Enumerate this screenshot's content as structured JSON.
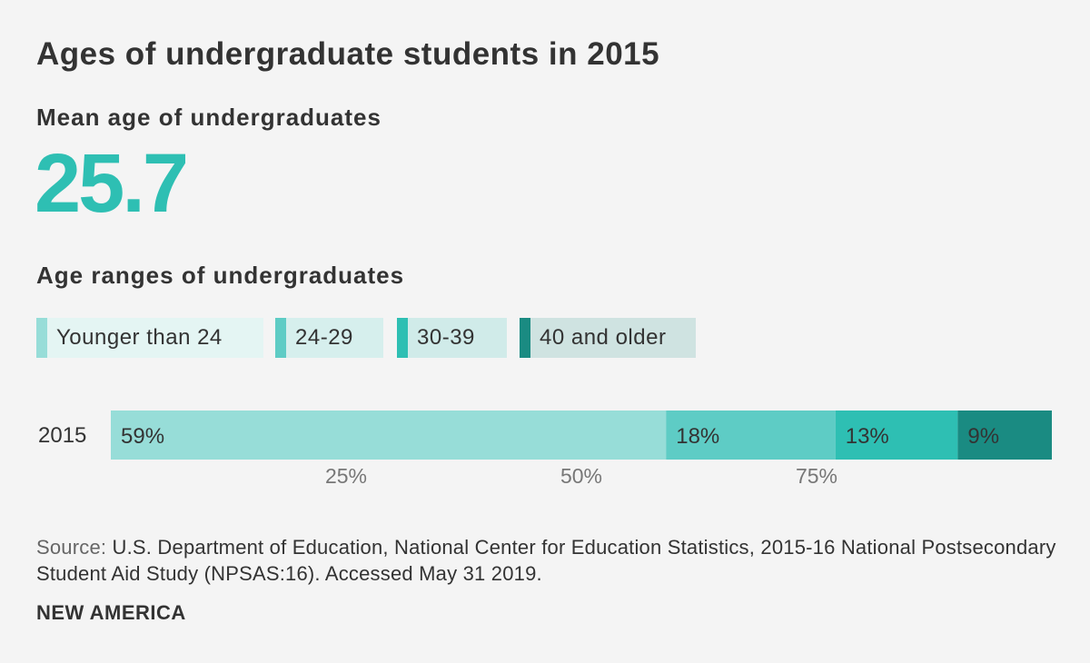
{
  "title": "Ages of undergraduate students in 2015",
  "mean": {
    "label": "Mean age of undergraduates",
    "value": "25.7",
    "color": "#2ebfb3"
  },
  "ranges_title": "Age ranges of undergraduates",
  "chart_data": {
    "type": "bar",
    "orientation": "horizontal-stacked",
    "categories": [
      "2015"
    ],
    "series": [
      {
        "name": "Younger than 24",
        "values": [
          59
        ],
        "label": "59%",
        "color": "#97ddd8"
      },
      {
        "name": "24-29",
        "values": [
          18
        ],
        "label": "18%",
        "color": "#5eccc5"
      },
      {
        "name": "30-39",
        "values": [
          13
        ],
        "label": "13%",
        "color": "#2ebfb3"
      },
      {
        "name": "40 and older",
        "values": [
          9
        ],
        "label": "9%",
        "color": "#1a8b82"
      }
    ],
    "xlim": [
      0,
      100
    ],
    "xticks": [
      {
        "value": 25,
        "label": "25%"
      },
      {
        "value": 50,
        "label": "50%"
      },
      {
        "value": 75,
        "label": "75%"
      }
    ],
    "legend_position": "top-left"
  },
  "legend_backgrounds": [
    "#e4f5f3",
    "#d6efed",
    "#d0ebe9",
    "#cfe3e1"
  ],
  "source": {
    "prefix": "Source:",
    "text": " U.S. Department of Education, National Center for Education Statistics, 2015-16 National Postsecondary Student Aid Study (NPSAS:16). Accessed May 31 2019."
  },
  "brand": "NEW AMERICA"
}
